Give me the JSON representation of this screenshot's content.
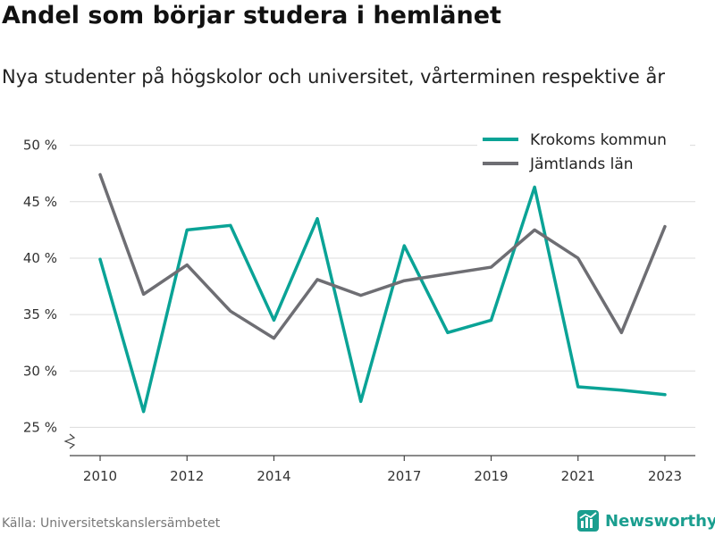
{
  "title": "Andel som börjar studera i hemlänet",
  "subtitle": "Nya studenter på högskolor och universitet, vårterminen respektive år",
  "source": "Källa: Universitetskanslersämbetet",
  "brand": "Newsworthy",
  "chart_data": {
    "type": "line",
    "x": [
      2010,
      2011,
      2012,
      2013,
      2014,
      2015,
      2016,
      2017,
      2018,
      2019,
      2020,
      2021,
      2022,
      2023
    ],
    "x_ticks": [
      2010,
      2012,
      2014,
      2017,
      2019,
      2021,
      2023
    ],
    "y_ticks": [
      25,
      30,
      35,
      40,
      45,
      50
    ],
    "y_tick_suffix": " %",
    "ylim": [
      22.5,
      51
    ],
    "xlim": [
      2009.3,
      2023.7
    ],
    "axis_break": true,
    "grid": "horizontal",
    "legend_position": "top-right",
    "series": [
      {
        "name": "Krokoms kommun",
        "color": "#0aa396",
        "values": [
          39.9,
          26.4,
          42.5,
          42.9,
          34.5,
          43.5,
          27.3,
          41.1,
          33.4,
          34.5,
          46.3,
          28.6,
          28.3,
          27.9
        ]
      },
      {
        "name": "Jämtlands län",
        "color": "#6e6e73",
        "values": [
          47.4,
          36.8,
          39.4,
          35.3,
          32.9,
          38.1,
          36.7,
          38.0,
          38.6,
          39.2,
          42.5,
          40.0,
          33.4,
          42.8
        ]
      }
    ]
  }
}
